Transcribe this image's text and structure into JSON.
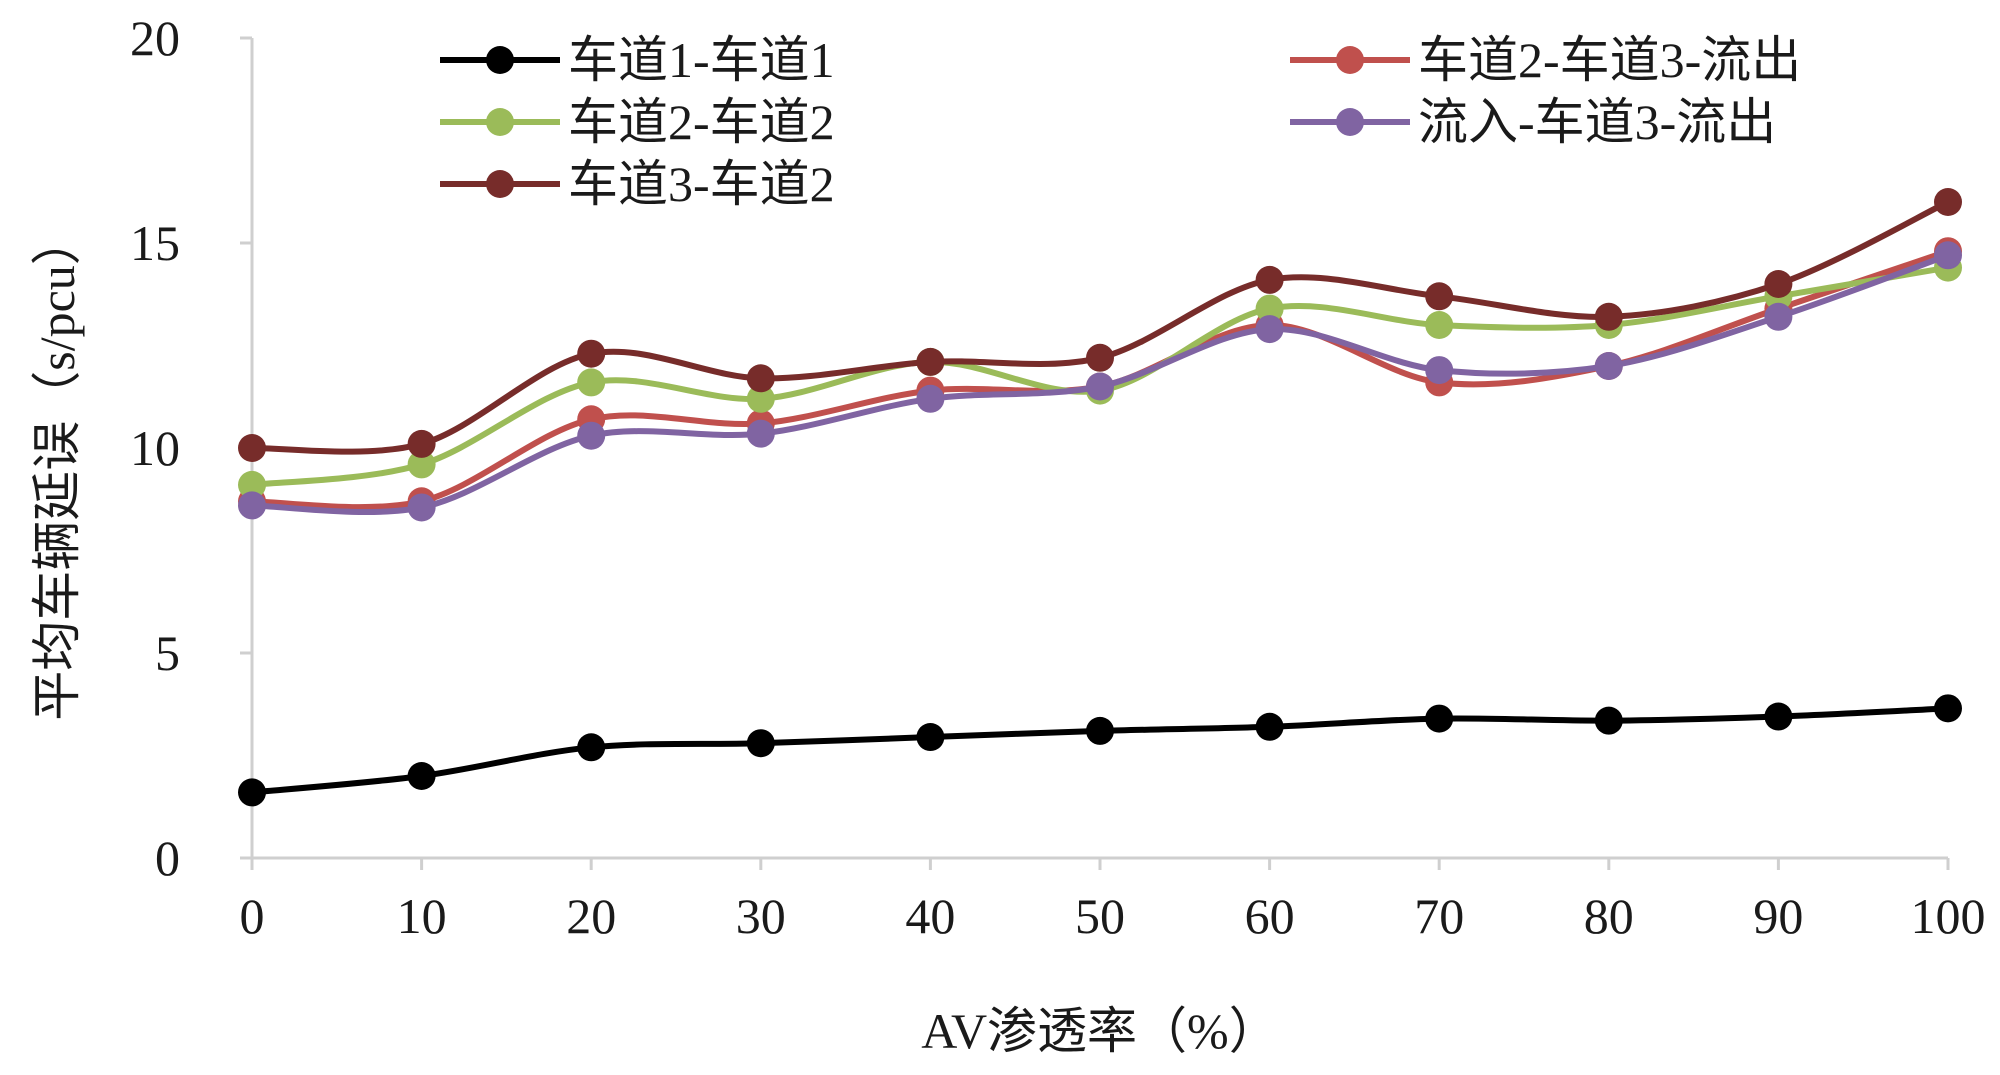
{
  "chart_data": {
    "type": "line",
    "xlabel": "AV渗透率（%）",
    "ylabel": "平均车辆延误（s/pcu）",
    "x": [
      0,
      10,
      20,
      30,
      40,
      50,
      60,
      70,
      80,
      90,
      100
    ],
    "xlim": [
      0,
      100
    ],
    "ylim": [
      0,
      20
    ],
    "yticks": [
      0,
      5,
      10,
      15,
      20
    ],
    "grid": false,
    "legend_position": "top",
    "series": [
      {
        "name": "车道1-车道1",
        "color": "#000000",
        "values": [
          1.6,
          2.0,
          2.7,
          2.8,
          2.95,
          3.1,
          3.2,
          3.4,
          3.35,
          3.45,
          3.65
        ]
      },
      {
        "name": "车道2-车道3-流出",
        "color": "#c0504d",
        "values": [
          8.7,
          8.7,
          10.7,
          10.6,
          11.4,
          11.5,
          13.0,
          11.6,
          12.0,
          13.4,
          14.8
        ]
      },
      {
        "name": "车道2-车道2",
        "color": "#9bbb59",
        "values": [
          9.1,
          9.6,
          11.6,
          11.2,
          12.1,
          11.4,
          13.4,
          13.0,
          13.0,
          13.7,
          14.4
        ]
      },
      {
        "name": "流入-车道3-流出",
        "color": "#8064a2",
        "values": [
          8.6,
          8.55,
          10.3,
          10.35,
          11.2,
          11.5,
          12.9,
          11.9,
          12.0,
          13.2,
          14.7
        ]
      },
      {
        "name": "车道3-车道2",
        "color": "#772c2a",
        "values": [
          10.0,
          10.1,
          12.3,
          11.7,
          12.1,
          12.2,
          14.1,
          13.7,
          13.2,
          14.0,
          16.0
        ]
      }
    ]
  }
}
